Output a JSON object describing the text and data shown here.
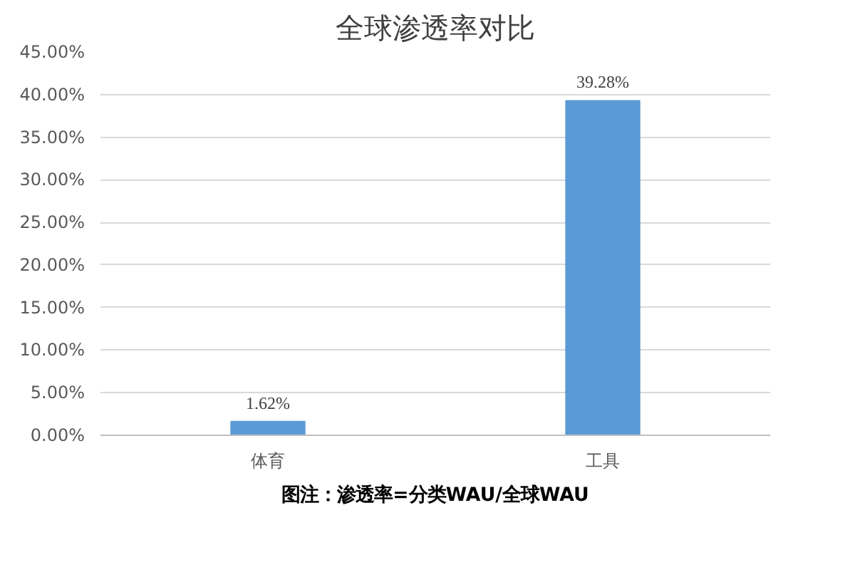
{
  "chart_data": {
    "type": "bar",
    "title": "全球渗透率对比",
    "categories": [
      "体育",
      "工具"
    ],
    "values": [
      1.62,
      39.28
    ],
    "value_labels": [
      "1.62%",
      "39.28%"
    ],
    "color": "#5b9bd5",
    "ylim": [
      0,
      45
    ],
    "yticks": [
      {
        "value": 0,
        "label": "0.00%"
      },
      {
        "value": 5,
        "label": "5.00%"
      },
      {
        "value": 10,
        "label": "10.00%"
      },
      {
        "value": 15,
        "label": "15.00%"
      },
      {
        "value": 20,
        "label": "20.00%"
      },
      {
        "value": 25,
        "label": "25.00%"
      },
      {
        "value": 30,
        "label": "30.00%"
      },
      {
        "value": 35,
        "label": "35.00%"
      },
      {
        "value": 40,
        "label": "40.00%"
      },
      {
        "value": 45,
        "label": "45.00%"
      }
    ],
    "grid": "y",
    "annotations": [
      "图注：渗透率=分类WAU/全球WAU"
    ]
  }
}
